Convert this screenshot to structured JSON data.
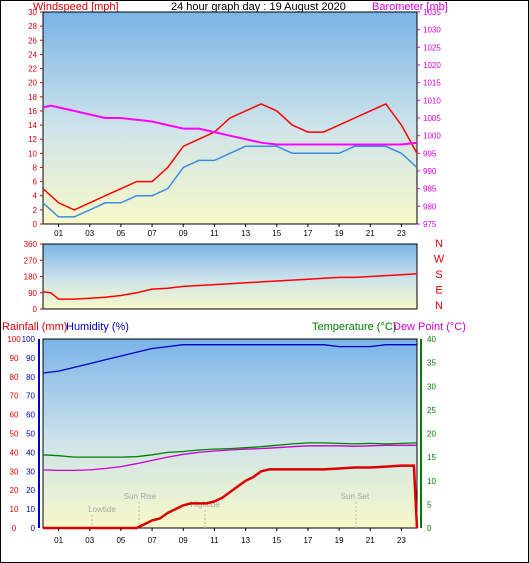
{
  "chart_data": [
    {
      "type": "line",
      "title": "24 hour graph day : 19 August 2020",
      "ylabel": "Windspeed [mph]",
      "y2label": "Barometer [mb]",
      "x_ticks": [
        "01",
        "03",
        "05",
        "07",
        "09",
        "11",
        "13",
        "15",
        "17",
        "19",
        "21",
        "23"
      ],
      "ylim": [
        0,
        30
      ],
      "y_ticks": [
        "0",
        "2",
        "4",
        "6",
        "8",
        "10",
        "12",
        "14",
        "16",
        "18",
        "20",
        "22",
        "24",
        "26",
        "28",
        "30"
      ],
      "y2lim": [
        975,
        1035
      ],
      "y2_ticks": [
        "975",
        "980",
        "985",
        "990",
        "995",
        "1000",
        "1005",
        "1010",
        "1015",
        "1020",
        "1025",
        "1030",
        "1035"
      ],
      "series": [
        {
          "name": "Windspeed [mph]",
          "color": "#ff0000",
          "x": [
            0,
            1,
            2,
            3,
            4,
            5,
            6,
            7,
            8,
            9,
            10,
            11,
            12,
            13,
            14,
            15,
            16,
            17,
            18,
            19,
            20,
            21,
            22,
            23,
            24
          ],
          "values": [
            5,
            3,
            2,
            3,
            4,
            5,
            6,
            6,
            8,
            11,
            12,
            13,
            15,
            16,
            17,
            16,
            14,
            13,
            13,
            14,
            15,
            16,
            17,
            14,
            10
          ]
        },
        {
          "name": "Wind Gust",
          "color": "#3a8ee6",
          "x": [
            0,
            1,
            2,
            3,
            4,
            5,
            6,
            7,
            8,
            9,
            10,
            11,
            12,
            13,
            14,
            15,
            16,
            17,
            18,
            19,
            20,
            21,
            22,
            23,
            24
          ],
          "values": [
            3,
            1,
            1,
            2,
            3,
            3,
            4,
            4,
            5,
            8,
            9,
            9,
            10,
            11,
            11,
            11,
            10,
            10,
            10,
            10,
            11,
            11,
            11,
            10,
            8
          ]
        },
        {
          "name": "Barometer [mb]",
          "color": "#ff00ff",
          "x": [
            0,
            0.5,
            1,
            2,
            3,
            4,
            5,
            6,
            7,
            8,
            9,
            10,
            11,
            12,
            13,
            14,
            15,
            16,
            17,
            18,
            19,
            20,
            21,
            22,
            23,
            24
          ],
          "values": [
            1008,
            1008.5,
            1008,
            1007,
            1006,
            1005,
            1005,
            1004.5,
            1004,
            1003,
            1002,
            1002,
            1001,
            1000,
            999,
            998,
            997.5,
            997.5,
            997.5,
            997.5,
            997.5,
            997.5,
            997.5,
            997.5,
            997.5,
            998
          ]
        }
      ]
    },
    {
      "type": "line",
      "ylim": [
        0,
        360
      ],
      "y_ticks": [
        "0",
        "90",
        "180",
        "270",
        "360"
      ],
      "y2_ticks": [
        "N",
        "W",
        "S",
        "E",
        "N"
      ],
      "series": [
        {
          "name": "Wind Direction",
          "color": "#ff0000",
          "x": [
            0,
            0.5,
            1,
            2,
            3,
            4,
            5,
            6,
            7,
            8,
            9,
            10,
            11,
            12,
            13,
            14,
            15,
            16,
            17,
            18,
            19,
            20,
            21,
            22,
            23,
            24
          ],
          "values": [
            95,
            90,
            55,
            55,
            60,
            65,
            75,
            90,
            110,
            115,
            125,
            130,
            135,
            140,
            145,
            150,
            155,
            160,
            165,
            170,
            175,
            175,
            180,
            185,
            190,
            195
          ]
        }
      ]
    },
    {
      "type": "line",
      "ylabel": "Rainfall (mm)",
      "ylabel2": "Humidity (%)",
      "y2label": "Temperature (°C)",
      "y2label2": "Dew Point (°C)",
      "x_ticks": [
        "01",
        "03",
        "05",
        "07",
        "09",
        "11",
        "13",
        "15",
        "17",
        "19",
        "21",
        "23"
      ],
      "ylim": [
        0,
        100
      ],
      "y_ticks": [
        "0",
        "10",
        "20",
        "30",
        "40",
        "50",
        "60",
        "70",
        "80",
        "90",
        "100"
      ],
      "y2lim": [
        0,
        40
      ],
      "y2_ticks": [
        "0",
        "5",
        "10",
        "15",
        "20",
        "25",
        "30",
        "35",
        "40"
      ],
      "annotations": [
        "Lowtide",
        "Sun Rise",
        "Hightide",
        "Sun Set"
      ],
      "series": [
        {
          "name": "Humidity (%)",
          "color": "#0000c0",
          "x": [
            0,
            1,
            2,
            3,
            4,
            5,
            6,
            7,
            8,
            9,
            10,
            11,
            12,
            13,
            14,
            15,
            16,
            17,
            18,
            19,
            20,
            21,
            22,
            23,
            24
          ],
          "values": [
            82,
            83,
            85,
            87,
            89,
            91,
            93,
            95,
            96,
            97,
            97,
            97,
            97,
            97,
            97,
            97,
            97,
            97,
            97,
            96,
            96,
            96,
            97,
            97,
            97
          ]
        },
        {
          "name": "Temperature (°C)",
          "color": "#008000",
          "x": [
            0,
            1,
            2,
            3,
            4,
            5,
            6,
            7,
            8,
            9,
            10,
            11,
            12,
            13,
            14,
            15,
            16,
            17,
            18,
            19,
            20,
            21,
            22,
            23,
            24
          ],
          "values": [
            15.5,
            15.3,
            15,
            15,
            15,
            15,
            15.1,
            15.5,
            16,
            16.2,
            16.5,
            16.7,
            16.8,
            17,
            17.2,
            17.5,
            17.8,
            18,
            18,
            17.9,
            17.8,
            17.9,
            17.8,
            17.9,
            18
          ]
        },
        {
          "name": "Dew Point (°C)",
          "color": "#cc00cc",
          "x": [
            0,
            1,
            2,
            3,
            4,
            5,
            6,
            7,
            8,
            9,
            10,
            11,
            12,
            13,
            14,
            15,
            16,
            17,
            18,
            19,
            20,
            21,
            22,
            23,
            24
          ],
          "values": [
            12.3,
            12.2,
            12.2,
            12.3,
            12.6,
            13,
            13.6,
            14.3,
            15,
            15.6,
            16,
            16.3,
            16.5,
            16.7,
            16.8,
            17,
            17.2,
            17.4,
            17.4,
            17.4,
            17.3,
            17.4,
            17.5,
            17.5,
            17.5
          ]
        },
        {
          "name": "Rainfall (mm)",
          "color": "#dd0000",
          "x": [
            0,
            1,
            2,
            3,
            4,
            5,
            5.5,
            6,
            6.5,
            7,
            7.5,
            8,
            8.5,
            9,
            9.5,
            10,
            10.5,
            11,
            11.5,
            12,
            12.5,
            13,
            13.5,
            14,
            14.5,
            15,
            16,
            17,
            18,
            19,
            20,
            21,
            22,
            23,
            23.8,
            24
          ],
          "values": [
            0,
            0,
            0,
            0,
            0,
            0,
            0,
            0,
            2,
            4,
            5,
            8,
            10,
            12,
            13,
            13,
            13,
            14,
            16,
            19,
            22,
            25,
            27,
            30,
            31,
            31,
            31,
            31,
            31,
            31.5,
            32,
            32,
            32.5,
            33,
            33,
            0
          ]
        }
      ]
    }
  ]
}
